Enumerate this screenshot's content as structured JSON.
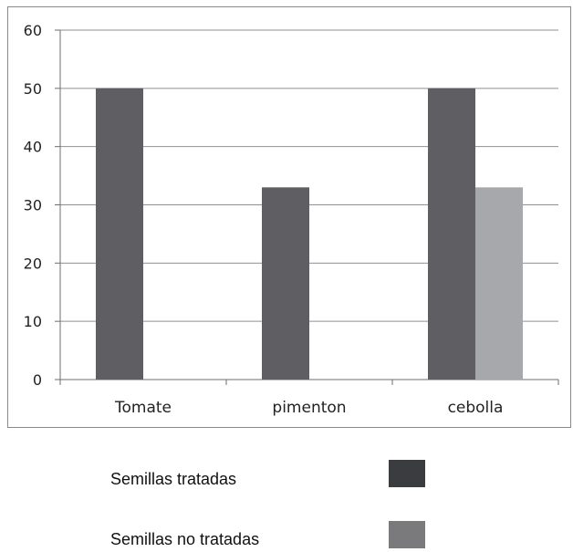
{
  "chart_data": {
    "type": "bar",
    "categories": [
      "Tomate",
      "pimenton",
      "cebolla"
    ],
    "series": [
      {
        "name": "Semillas tratadas",
        "values": [
          50,
          33,
          50
        ],
        "color": "#5f5f63"
      },
      {
        "name": "Semillas no tratadas",
        "values": [
          null,
          null,
          33
        ],
        "color": "#a7a8ab"
      }
    ],
    "ylim": [
      0,
      60
    ],
    "yticks": [
      0,
      10,
      20,
      30,
      40,
      50,
      60
    ],
    "grid": true,
    "legend_position": "bottom",
    "title": "",
    "xlabel": "",
    "ylabel": ""
  },
  "legend": {
    "items": [
      {
        "label": "Semillas tratadas",
        "swatch_color": "#3b3c3f"
      },
      {
        "label": "Semillas no tratadas",
        "swatch_color": "#7a7a7d"
      }
    ]
  }
}
